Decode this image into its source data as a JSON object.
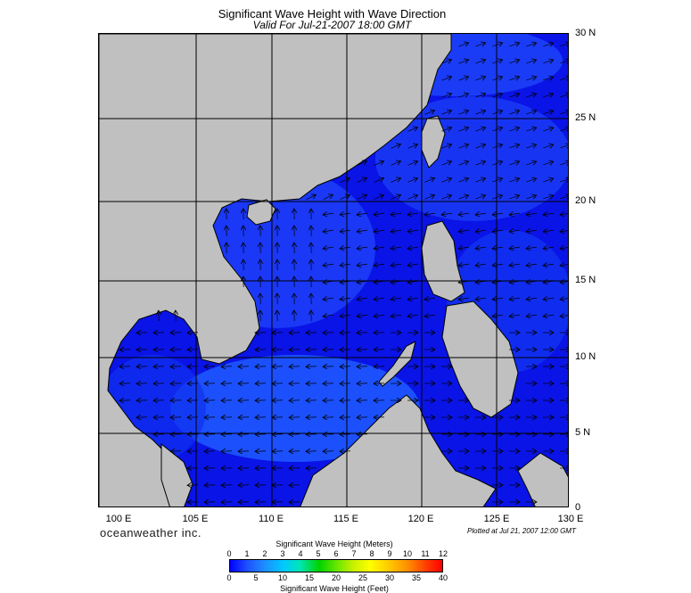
{
  "header": {
    "title": "Significant Wave Height with Wave Direction",
    "valid": "Valid For Jul-21-2007 18:00 GMT"
  },
  "axes": {
    "lon_labels": [
      "100 E",
      "105 E",
      "110 E",
      "115 E",
      "120 E",
      "125 E",
      "130 E"
    ],
    "lat_labels": [
      "30 N",
      "25 N",
      "20 N",
      "15 N",
      "10 N",
      "5 N",
      "0"
    ]
  },
  "footer": {
    "brand": "oceanweather inc.",
    "plotted": "Plotted at Jul 21, 2007 12:00 GMT"
  },
  "colorbar": {
    "meters_title": "Significant Wave Height (Meters)",
    "meters_ticks": [
      "0",
      "1",
      "2",
      "3",
      "4",
      "5",
      "6",
      "7",
      "8",
      "9",
      "10",
      "11",
      "12"
    ],
    "feet_title": "Significant Wave Height (Feet)",
    "feet_ticks": [
      "0",
      "5",
      "10",
      "15",
      "20",
      "25",
      "30",
      "35",
      "40"
    ]
  },
  "colors": {
    "land": "#c0c0c0",
    "sea_low": "#0a14e6",
    "sea_mid": "#1e50ff",
    "arrow": "#000000"
  }
}
